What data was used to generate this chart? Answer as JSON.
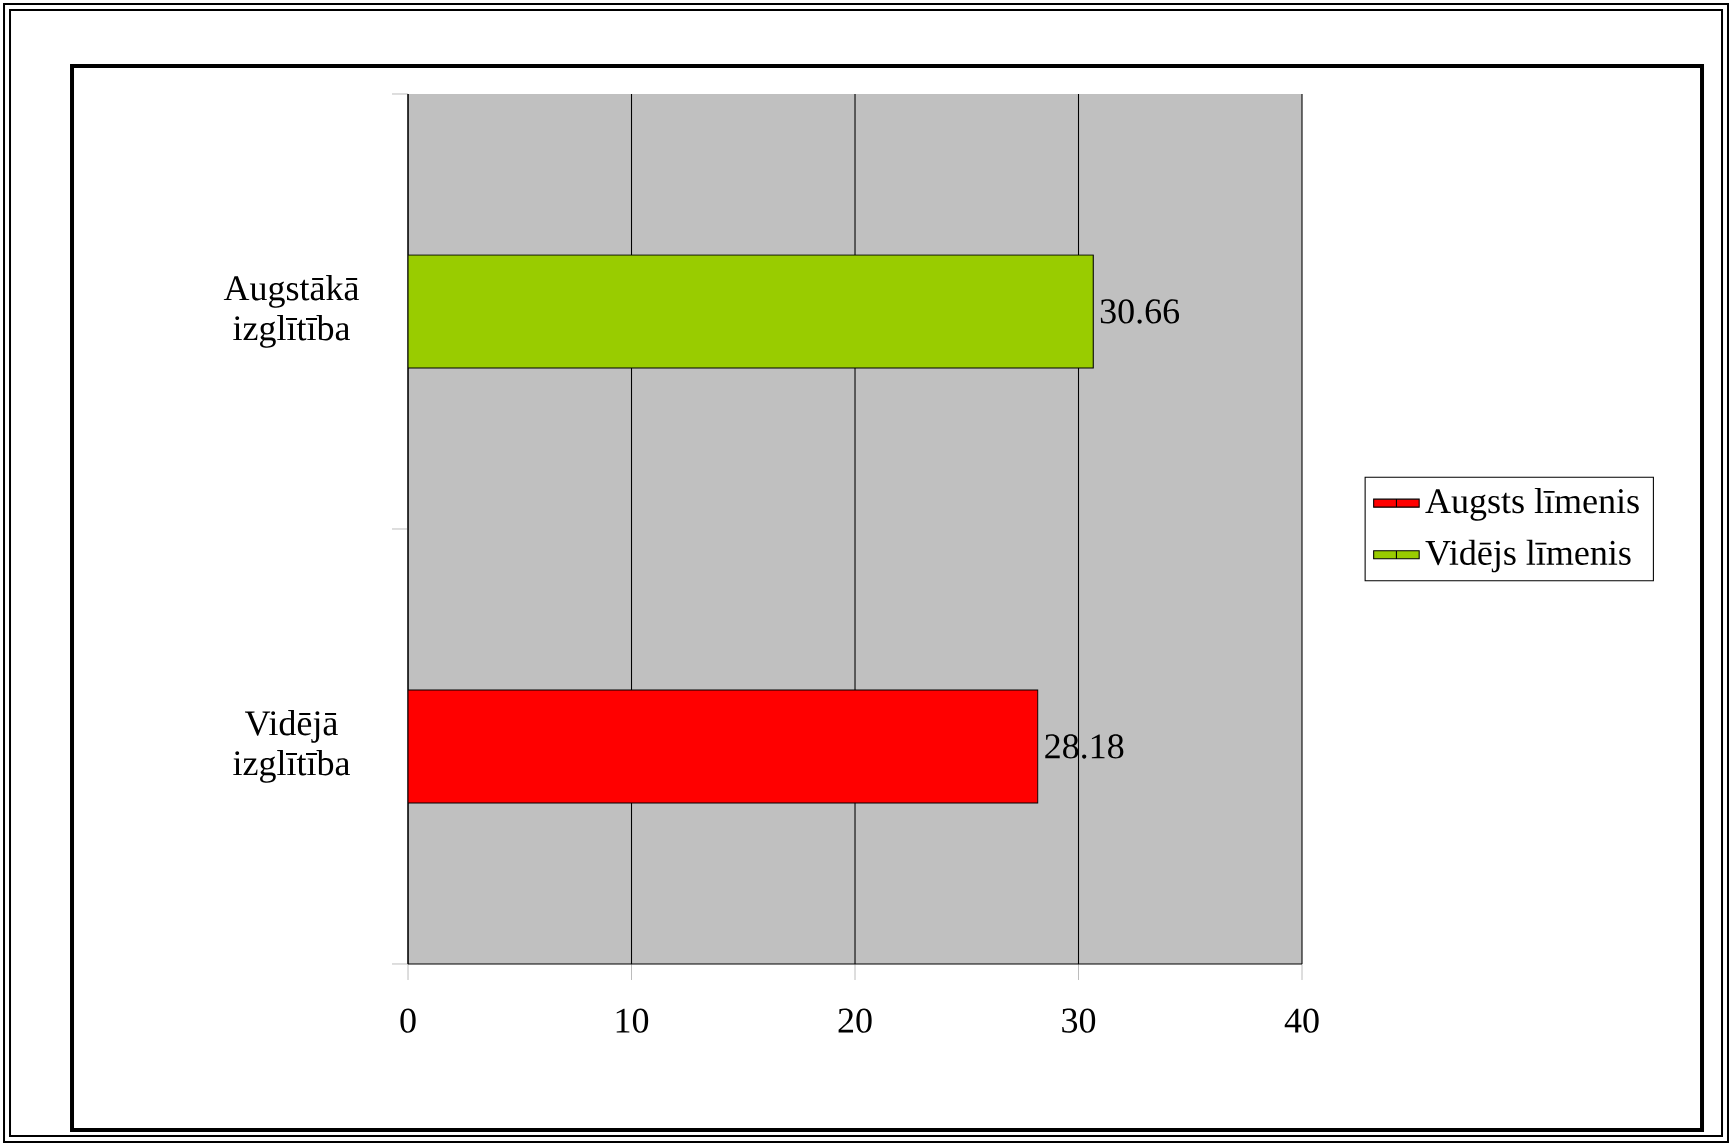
{
  "chart_data": {
    "type": "bar",
    "orientation": "horizontal",
    "categories": [
      "Augstākā izglītība",
      "Vidējā izglītība"
    ],
    "series": [
      {
        "name": "Augsts līmenis",
        "color": "#ff0000",
        "values": [
          null,
          28.18
        ]
      },
      {
        "name": "Vidējs līmenis",
        "color": "#99cc00",
        "values": [
          30.66,
          null
        ]
      }
    ],
    "xlim": [
      0,
      40
    ],
    "xticks": [
      0,
      10,
      20,
      30,
      40
    ],
    "grid": "x",
    "legend": "right",
    "data_labels": true
  }
}
